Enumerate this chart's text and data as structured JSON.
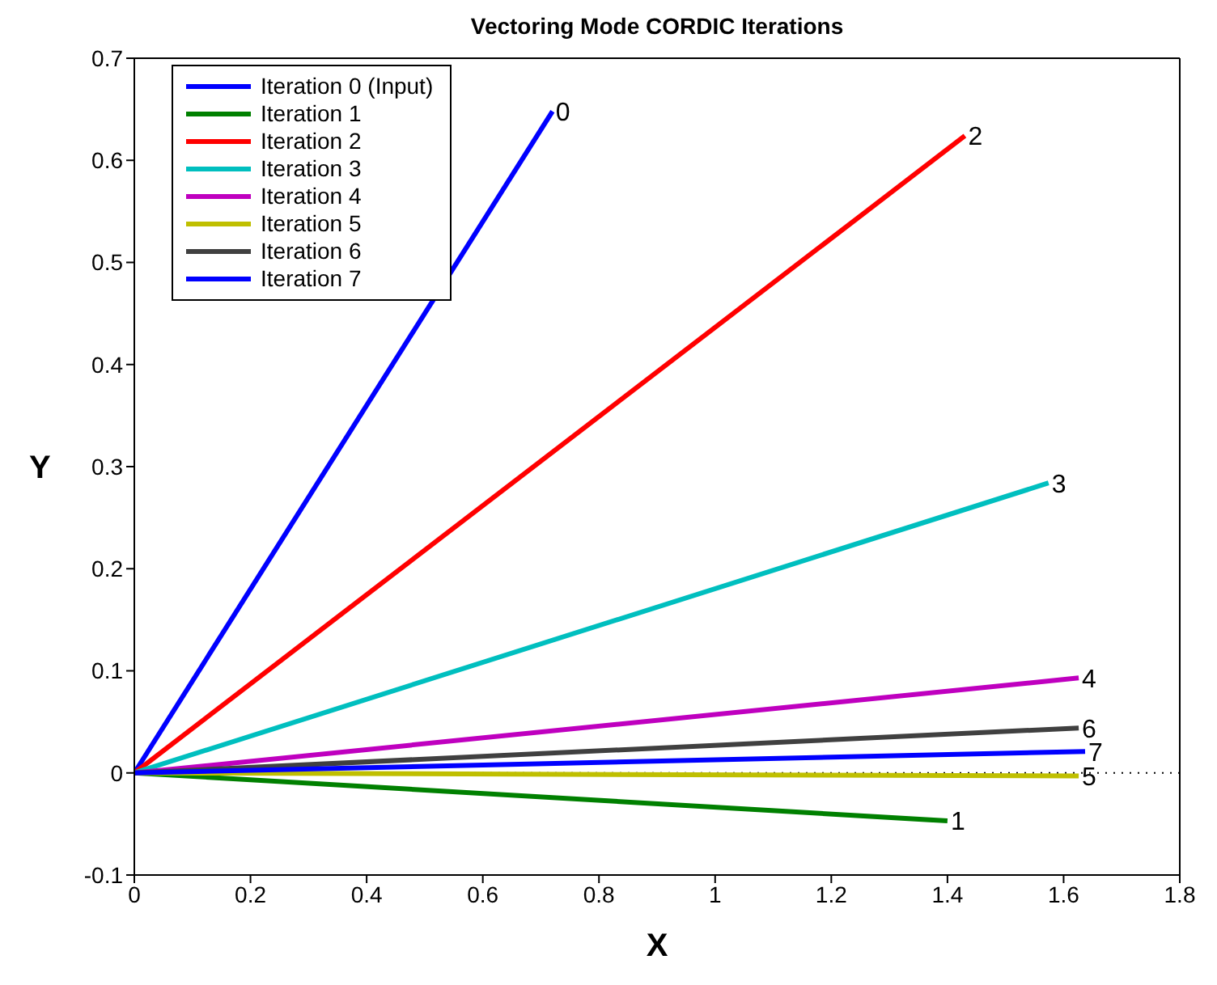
{
  "chart_data": {
    "type": "line",
    "title": "Vectoring Mode CORDIC Iterations",
    "xlabel": "X",
    "ylabel": "Y",
    "xlim": [
      0,
      1.8
    ],
    "xticks": [
      0,
      0.2,
      0.4,
      0.6,
      0.8,
      1,
      1.2,
      1.4,
      1.6,
      1.8
    ],
    "ylim": [
      -0.1,
      0.7
    ],
    "yticks": [
      -0.1,
      0,
      0.1,
      0.2,
      0.3,
      0.4,
      0.5,
      0.6,
      0.7
    ],
    "grid": false,
    "legend": "top left",
    "marker": "none",
    "line_style": "solid",
    "series": [
      {
        "name": "Iteration 0 (Input)",
        "color": "#0000ff",
        "x": [
          0,
          0.72
        ],
        "values": [
          0,
          0.648
        ]
      },
      {
        "name": "Iteration 1",
        "color": "#008000",
        "x": [
          0,
          1.4
        ],
        "values": [
          0,
          -0.047
        ]
      },
      {
        "name": "Iteration 2",
        "color": "#ff0000",
        "x": [
          0,
          1.43
        ],
        "values": [
          0,
          0.624
        ]
      },
      {
        "name": "Iteration 3",
        "color": "#00bfbf",
        "x": [
          0,
          1.574
        ],
        "values": [
          0,
          0.284
        ]
      },
      {
        "name": "Iteration 4",
        "color": "#bf00bf",
        "x": [
          0,
          1.626
        ],
        "values": [
          0,
          0.093
        ]
      },
      {
        "name": "Iteration 5",
        "color": "#bfbf00",
        "x": [
          0,
          1.626
        ],
        "values": [
          0,
          -0.003
        ]
      },
      {
        "name": "Iteration 6",
        "color": "#404040",
        "x": [
          0,
          1.626
        ],
        "values": [
          0,
          0.044
        ]
      },
      {
        "name": "Iteration 7",
        "color": "#0000ff",
        "x": [
          0,
          1.637
        ],
        "values": [
          0,
          0.021
        ]
      }
    ],
    "ref_lines": [
      {
        "axis": "y",
        "value": 0,
        "color": "#000000",
        "line_style": "dotted"
      }
    ],
    "annotations": [
      {
        "text": "0",
        "x": 0.72,
        "y": 0.648
      },
      {
        "text": "1",
        "x": 1.4,
        "y": -0.047
      },
      {
        "text": "2",
        "x": 1.43,
        "y": 0.624
      },
      {
        "text": "3",
        "x": 1.574,
        "y": 0.284
      },
      {
        "text": "4",
        "x": 1.626,
        "y": 0.093
      },
      {
        "text": "5",
        "x": 1.626,
        "y": -0.003
      },
      {
        "text": "6",
        "x": 1.626,
        "y": 0.044
      },
      {
        "text": "7",
        "x": 1.637,
        "y": 0.021
      }
    ]
  }
}
